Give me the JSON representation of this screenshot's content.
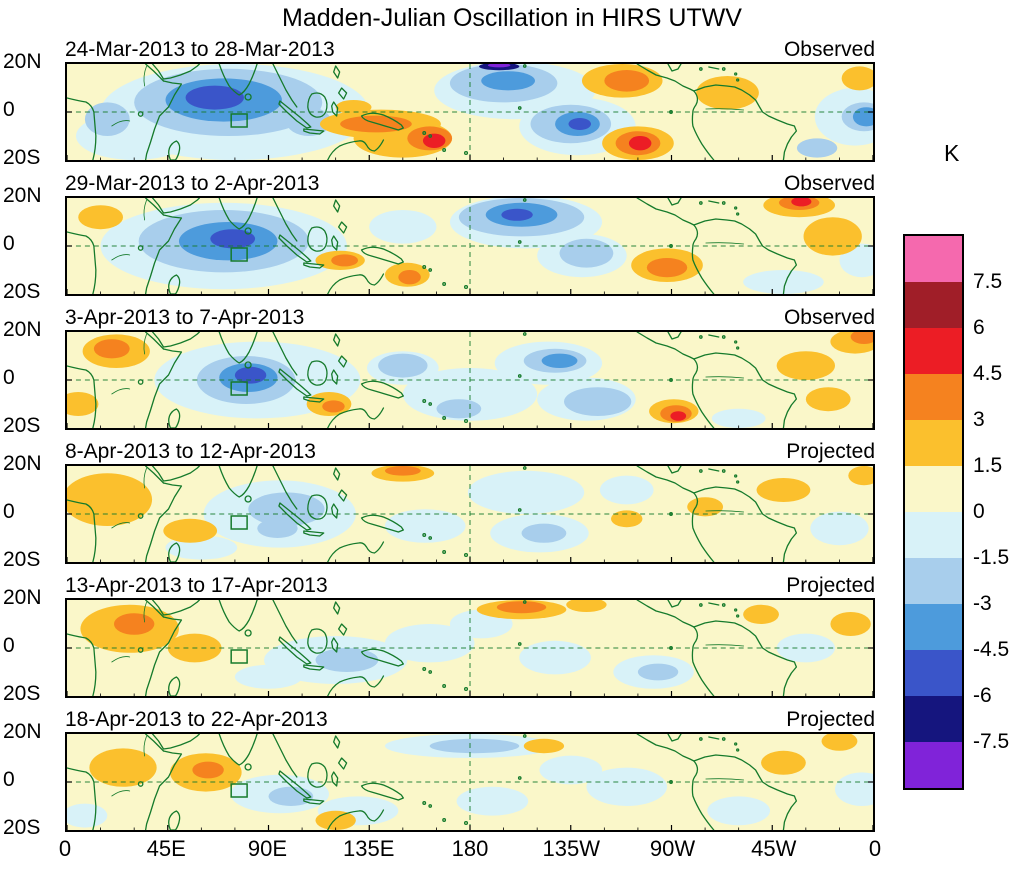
{
  "chart_data": {
    "type": "heatmap",
    "title": "Madden-Julian Oscillation in HIRS UTWV",
    "x_ticks": [
      "0",
      "45E",
      "90E",
      "135E",
      "180",
      "135W",
      "90W",
      "45W",
      "0"
    ],
    "y_ticks": [
      "20N",
      "0",
      "20S"
    ],
    "lon_range_deg_east": [
      0,
      360
    ],
    "lat_range_deg": [
      -20,
      20
    ],
    "colorbar": {
      "label": "K",
      "levels": [
        7.5,
        6,
        4.5,
        3,
        1.5,
        0,
        -1.5,
        -3,
        -4.5,
        -6,
        -7.5
      ],
      "colors": [
        "#F569AE",
        "#A01E28",
        "#EC1D25",
        "#F5821F",
        "#FBC02D",
        "#FAF7C9",
        "#D8F2F8",
        "#A8CEEC",
        "#4D9BDC",
        "#3A55C9",
        "#15157E",
        "#8023D9"
      ]
    },
    "map_colors": {
      "coastline": "#157A2B",
      "gridline": "#157A2B",
      "border": "#000000"
    },
    "feature_fields": [
      "lon_deg_east",
      "lat_deg",
      "rx_deg",
      "ry_deg",
      "anomaly_K"
    ],
    "panels": [
      {
        "date_range": "24-Mar-2013 to 28-Mar-2013",
        "status": "Observed",
        "features": [
          [
            75,
            0,
            60,
            20,
            -1
          ],
          [
            200,
            9,
            36,
            12,
            -1
          ],
          [
            228,
            -6,
            26,
            12,
            -1
          ],
          [
            30,
            -10,
            26,
            10,
            -1
          ],
          [
            352,
            -2,
            18,
            12,
            -1
          ],
          [
            108,
            -3,
            14,
            8,
            -1
          ],
          [
            72,
            4,
            42,
            14,
            -2
          ],
          [
            195,
            12,
            24,
            8,
            -2
          ],
          [
            225,
            -5,
            18,
            8,
            -2
          ],
          [
            108,
            -4,
            10,
            6,
            -2
          ],
          [
            18,
            -3,
            10,
            7,
            -2
          ],
          [
            356,
            -2,
            10,
            6,
            -2
          ],
          [
            335,
            -15,
            9,
            4,
            -2
          ],
          [
            70,
            5,
            26,
            9,
            -3.5
          ],
          [
            197,
            13,
            12,
            4,
            -3.5
          ],
          [
            228,
            -5,
            10,
            5,
            -3.5
          ],
          [
            357,
            -2,
            6,
            4,
            -3.5
          ],
          [
            66,
            6,
            13,
            5,
            -5
          ],
          [
            229,
            -5,
            5,
            2.5,
            -5
          ],
          [
            193,
            19,
            9,
            1.6,
            -6.5
          ],
          [
            193,
            19.5,
            5,
            0.9,
            -8
          ],
          [
            140,
            -5,
            27,
            6,
            2
          ],
          [
            150,
            -11,
            22,
            8,
            2
          ],
          [
            248,
            13,
            18,
            7,
            2
          ],
          [
            255,
            -13,
            16,
            7,
            2
          ],
          [
            295,
            8,
            14,
            7,
            2
          ],
          [
            354,
            14,
            8,
            5,
            2
          ],
          [
            128,
            2,
            8,
            3,
            2
          ],
          [
            138,
            -5,
            16,
            3.5,
            3.5
          ],
          [
            162,
            -11,
            10,
            5,
            3.5
          ],
          [
            250,
            13,
            10,
            4.5,
            3.5
          ],
          [
            255,
            -13,
            10,
            5,
            3.5
          ],
          [
            164,
            -12,
            5,
            3,
            5
          ],
          [
            256,
            -13,
            5,
            3,
            5
          ]
        ]
      },
      {
        "date_range": "29-Mar-2013 to 2-Apr-2013",
        "status": "Observed",
        "features": [
          [
            70,
            0,
            55,
            18,
            -1
          ],
          [
            205,
            10,
            34,
            11,
            -1
          ],
          [
            230,
            -4,
            20,
            9,
            -1
          ],
          [
            320,
            -15,
            18,
            5,
            -1
          ],
          [
            355,
            -6,
            10,
            7,
            -1
          ],
          [
            150,
            8,
            15,
            7,
            -1
          ],
          [
            70,
            2,
            38,
            13,
            -2
          ],
          [
            203,
            12,
            28,
            8,
            -2
          ],
          [
            232,
            -3,
            12,
            6,
            -2
          ],
          [
            72,
            2,
            22,
            8,
            -3.5
          ],
          [
            203,
            13,
            16,
            5,
            -3.5
          ],
          [
            74,
            3,
            10,
            4,
            -5
          ],
          [
            201,
            13,
            7,
            2.5,
            -5
          ],
          [
            15,
            12,
            10,
            5,
            2
          ],
          [
            152,
            -12,
            10,
            5,
            2
          ],
          [
            122,
            -6,
            11,
            4,
            2
          ],
          [
            268,
            -8,
            16,
            7,
            2
          ],
          [
            327,
            17,
            16,
            5,
            2
          ],
          [
            342,
            4,
            13,
            8,
            2
          ],
          [
            124,
            -6,
            6,
            2.5,
            3.5
          ],
          [
            153,
            -13,
            5,
            3,
            3.5
          ],
          [
            268,
            -9,
            9,
            4,
            3.5
          ],
          [
            327,
            18,
            9,
            3,
            3.5
          ],
          [
            328,
            18.5,
            4.5,
            2,
            5
          ]
        ]
      },
      {
        "date_range": "3-Apr-2013 to 7-Apr-2013",
        "status": "Observed",
        "features": [
          [
            85,
            0,
            46,
            16,
            -1
          ],
          [
            180,
            -6,
            30,
            11,
            -1
          ],
          [
            232,
            -8,
            22,
            9,
            -1
          ],
          [
            215,
            7,
            24,
            9,
            -1
          ],
          [
            300,
            -16,
            12,
            4,
            -1
          ],
          [
            150,
            5,
            16,
            7,
            -1
          ],
          [
            80,
            0,
            22,
            10,
            -2
          ],
          [
            218,
            8,
            14,
            5,
            -2
          ],
          [
            237,
            -9,
            15,
            6,
            -2
          ],
          [
            150,
            6,
            11,
            5,
            -2
          ],
          [
            175,
            -12,
            10,
            4,
            -2
          ],
          [
            81,
            1,
            13,
            6,
            -3.5
          ],
          [
            220,
            8,
            8,
            3,
            -3.5
          ],
          [
            82,
            2,
            7,
            3.5,
            -5
          ],
          [
            22,
            12,
            15,
            7,
            2
          ],
          [
            5,
            -10,
            9,
            5,
            2
          ],
          [
            117,
            -10,
            10,
            5,
            2
          ],
          [
            271,
            -13,
            11,
            5,
            2
          ],
          [
            330,
            6,
            13,
            6,
            2
          ],
          [
            340,
            -8,
            10,
            5,
            2
          ],
          [
            352,
            16,
            11,
            5,
            2
          ],
          [
            20,
            13,
            8,
            4,
            3.5
          ],
          [
            119,
            -11,
            5,
            2.5,
            3.5
          ],
          [
            272,
            -14,
            7,
            3.5,
            3.5
          ],
          [
            356,
            18,
            6,
            3,
            3.5
          ],
          [
            273,
            -15,
            3.5,
            2,
            5
          ]
        ]
      },
      {
        "date_range": "8-Apr-2013 to 12-Apr-2013",
        "status": "Projected",
        "features": [
          [
            95,
            0,
            34,
            14,
            -1
          ],
          [
            160,
            -5,
            18,
            7,
            -1
          ],
          [
            205,
            9,
            26,
            9,
            -1
          ],
          [
            211,
            -8,
            22,
            8,
            -1
          ],
          [
            345,
            -6,
            13,
            7,
            -1
          ],
          [
            60,
            -14,
            16,
            5,
            -1
          ],
          [
            250,
            10,
            12,
            6,
            -1
          ],
          [
            98,
            2,
            17,
            7,
            -2
          ],
          [
            213,
            -8,
            10,
            4,
            -2
          ],
          [
            94,
            -6,
            9,
            4,
            -2
          ],
          [
            18,
            6,
            20,
            11,
            2
          ],
          [
            55,
            -7,
            12,
            5,
            2
          ],
          [
            150,
            17,
            14,
            3.5,
            2
          ],
          [
            250,
            -2,
            7,
            3.5,
            2
          ],
          [
            320,
            10,
            12,
            5,
            2
          ],
          [
            356,
            16,
            7,
            4,
            2
          ],
          [
            285,
            3,
            8,
            4,
            2
          ],
          [
            150,
            18,
            8,
            2,
            3.5
          ]
        ]
      },
      {
        "date_range": "13-Apr-2013 to 17-Apr-2013",
        "status": "Projected",
        "features": [
          [
            120,
            -5,
            32,
            10,
            -1
          ],
          [
            162,
            2,
            20,
            8,
            -1
          ],
          [
            262,
            -10,
            18,
            7,
            -1
          ],
          [
            218,
            -4,
            16,
            7,
            -1
          ],
          [
            330,
            0,
            13,
            6,
            -1
          ],
          [
            90,
            -12,
            15,
            5,
            -1
          ],
          [
            185,
            10,
            14,
            6,
            -1
          ],
          [
            264,
            -10,
            9,
            3.5,
            -2
          ],
          [
            125,
            -5,
            14,
            5,
            -2
          ],
          [
            28,
            8,
            22,
            10,
            2
          ],
          [
            57,
            0,
            12,
            6,
            2
          ],
          [
            203,
            16,
            20,
            4,
            2
          ],
          [
            232,
            18,
            9,
            3,
            2
          ],
          [
            350,
            10,
            9,
            5,
            2
          ],
          [
            310,
            14,
            8,
            4,
            2
          ],
          [
            30,
            10,
            9,
            4.5,
            3.5
          ],
          [
            203,
            17,
            11,
            2.5,
            3.5
          ]
        ]
      },
      {
        "date_range": "18-Apr-2013 to 22-Apr-2013",
        "status": "Projected",
        "features": [
          [
            95,
            -5,
            22,
            8,
            -1
          ],
          [
            180,
            15,
            38,
            5,
            -1
          ],
          [
            130,
            -12,
            18,
            6,
            -1
          ],
          [
            190,
            -8,
            16,
            6,
            -1
          ],
          [
            250,
            -2,
            18,
            8,
            -1
          ],
          [
            300,
            -12,
            14,
            6,
            -1
          ],
          [
            355,
            -3,
            12,
            7,
            -1
          ],
          [
            8,
            -14,
            10,
            5,
            -1
          ],
          [
            225,
            5,
            14,
            6,
            -1
          ],
          [
            182,
            15,
            20,
            3,
            -2
          ],
          [
            100,
            -6,
            10,
            4,
            -2
          ],
          [
            25,
            6,
            15,
            8,
            2
          ],
          [
            62,
            4,
            16,
            8,
            2
          ],
          [
            213,
            15,
            9,
            3,
            2
          ],
          [
            320,
            8,
            10,
            5,
            2
          ],
          [
            345,
            17,
            8,
            4,
            2
          ],
          [
            120,
            -16,
            9,
            4,
            2
          ],
          [
            63,
            5,
            7,
            3.5,
            3.5
          ]
        ]
      }
    ]
  }
}
